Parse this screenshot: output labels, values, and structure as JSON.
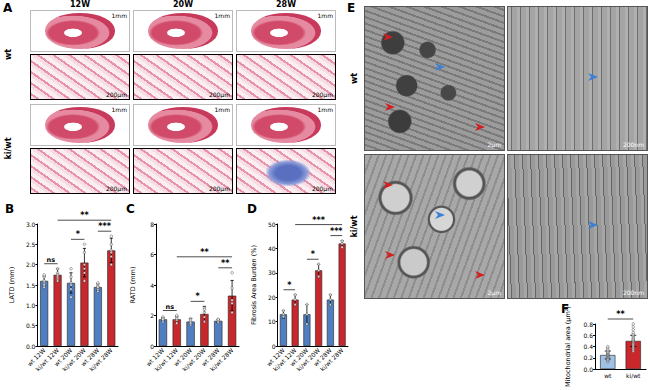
{
  "figure_panels": {
    "A": {
      "label": "A",
      "columns": [
        "12W",
        "20W",
        "28W"
      ],
      "rows": [
        "wt",
        "ki/wt"
      ],
      "overview_scales": [
        "1mm",
        "1mm",
        "1mm"
      ],
      "zoom_scales": [
        "200μm",
        "200μm",
        "200μm"
      ]
    },
    "E": {
      "label": "E",
      "rows": [
        "wt",
        "ki/wt"
      ],
      "scales": [
        "2μm",
        "200nm"
      ]
    }
  },
  "chart_data": [
    {
      "type": "bar",
      "title": "B",
      "y_label": "LATD (mm)",
      "categories": [
        "wt 12W",
        "ki/wt 12W",
        "wt 20W",
        "ki/wt 20W",
        "wt 28W",
        "ki/wt 28W"
      ],
      "values": [
        1.6,
        1.75,
        1.55,
        2.05,
        1.45,
        2.35
      ],
      "errors": [
        0.12,
        0.15,
        0.25,
        0.35,
        0.08,
        0.3
      ],
      "points": [
        [
          1.45,
          1.55,
          1.6,
          1.7,
          1.75,
          1.5
        ],
        [
          1.65,
          1.7,
          1.8,
          1.9,
          1.75,
          1.6
        ],
        [
          1.2,
          1.4,
          1.55,
          1.7,
          1.9,
          1.5
        ],
        [
          1.6,
          1.8,
          2.0,
          2.3,
          2.5,
          1.9
        ],
        [
          1.35,
          1.4,
          1.45,
          1.5,
          1.55,
          1.45
        ],
        [
          2.0,
          2.2,
          2.35,
          2.5,
          2.7,
          2.3
        ]
      ],
      "colors": [
        "#4f7fc0",
        "#c8282c",
        "#4f7fc0",
        "#c8282c",
        "#4f7fc0",
        "#c8282c"
      ],
      "ylim": [
        0,
        3
      ],
      "yticks": [
        {
          "value": 0,
          "label": "0.0"
        },
        {
          "value": 0.5,
          "label": "0.5"
        },
        {
          "value": 1,
          "label": "1.0"
        },
        {
          "value": 1.5,
          "label": "1.5"
        },
        {
          "value": 2,
          "label": "2.0"
        },
        {
          "value": 2.5,
          "label": "2.5"
        },
        {
          "value": 3,
          "label": "3.0"
        }
      ],
      "grid": false,
      "significance": [
        {
          "pair": [
            "wt 12W",
            "ki/wt 12W"
          ],
          "label": "ns"
        },
        {
          "pair": [
            "wt 20W",
            "ki/wt 20W"
          ],
          "label": "*"
        },
        {
          "pair": [
            "wt 28W",
            "ki/wt 28W"
          ],
          "label": "***"
        },
        {
          "pair": [
            "ki/wt 12W",
            "ki/wt 28W"
          ],
          "label": "**"
        }
      ]
    },
    {
      "type": "bar",
      "title": "C",
      "y_label": "RATD (mm)",
      "categories": [
        "wt 12W",
        "ki/wt 12W",
        "wt 20W",
        "ki/wt 20W",
        "wt 28W",
        "ki/wt 28W"
      ],
      "values": [
        1.75,
        1.75,
        1.6,
        2.1,
        1.65,
        3.3
      ],
      "errors": [
        0.12,
        0.2,
        0.2,
        0.5,
        0.1,
        1.0
      ],
      "points": [
        [
          1.6,
          1.7,
          1.8,
          1.9,
          1.75
        ],
        [
          1.5,
          1.7,
          1.9,
          1.8,
          2.0
        ],
        [
          1.4,
          1.5,
          1.6,
          1.8,
          1.7
        ],
        [
          1.6,
          1.9,
          2.2,
          2.5,
          2.4
        ],
        [
          1.55,
          1.6,
          1.7,
          1.75
        ],
        [
          2.2,
          2.8,
          3.0,
          3.8,
          4.8
        ]
      ],
      "colors": [
        "#4f7fc0",
        "#c8282c",
        "#4f7fc0",
        "#c8282c",
        "#4f7fc0",
        "#c8282c"
      ],
      "ylim": [
        0,
        8
      ],
      "yticks": [
        0,
        2,
        4,
        6,
        8
      ],
      "grid": false,
      "significance": [
        {
          "pair": [
            "wt 12W",
            "ki/wt 12W"
          ],
          "label": "ns"
        },
        {
          "pair": [
            "wt 20W",
            "ki/wt 20W"
          ],
          "label": "*"
        },
        {
          "pair": [
            "wt 28W",
            "ki/wt 28W"
          ],
          "label": "**"
        },
        {
          "pair": [
            "ki/wt 12W",
            "ki/wt 28W"
          ],
          "label": "**"
        }
      ]
    },
    {
      "type": "bar",
      "title": "D",
      "y_label": "Fibrosis Area Burden (%)",
      "categories": [
        "wt 12W",
        "ki/wt 12W",
        "wt 20W",
        "ki/wt 20W",
        "wt 28W",
        "ki/wt 28W"
      ],
      "values": [
        13,
        19,
        13,
        31,
        19,
        42
      ],
      "errors": [
        1.5,
        2,
        4,
        2.5,
        2,
        1.2
      ],
      "points": [
        [
          12,
          13,
          14.5
        ],
        [
          17,
          19,
          21
        ],
        [
          9,
          13,
          17
        ],
        [
          28.5,
          31,
          33.5
        ],
        [
          17,
          19,
          21
        ],
        [
          40.5,
          42,
          43
        ]
      ],
      "colors": [
        "#4f7fc0",
        "#c8282c",
        "#4f7fc0",
        "#c8282c",
        "#4f7fc0",
        "#c8282c"
      ],
      "ylim": [
        0,
        50
      ],
      "yticks": [
        0,
        10,
        20,
        30,
        40,
        50
      ],
      "grid": false,
      "significance": [
        {
          "pair": [
            "wt 12W",
            "ki/wt 12W"
          ],
          "label": "*"
        },
        {
          "pair": [
            "wt 20W",
            "ki/wt 20W"
          ],
          "label": "*"
        },
        {
          "pair": [
            "wt 28W",
            "ki/wt 28W"
          ],
          "label": "***"
        },
        {
          "pair": [
            "ki/wt 12W",
            "ki/wt 28W"
          ],
          "label": "***"
        }
      ]
    },
    {
      "type": "bar",
      "title": "F",
      "y_label": "Mitochondrial area (μm²)",
      "categories": [
        "wt",
        "ki/wt"
      ],
      "values": [
        0.25,
        0.5
      ],
      "errors": [
        0.07,
        0.1
      ],
      "points": [
        [
          0.13,
          0.15,
          0.17,
          0.18,
          0.2,
          0.21,
          0.22,
          0.23,
          0.24,
          0.25,
          0.25,
          0.26,
          0.27,
          0.28,
          0.29,
          0.3,
          0.31,
          0.33,
          0.35,
          0.38,
          0.4
        ],
        [
          0.32,
          0.35,
          0.38,
          0.4,
          0.42,
          0.44,
          0.46,
          0.48,
          0.49,
          0.5,
          0.51,
          0.52,
          0.54,
          0.56,
          0.58,
          0.6,
          0.62,
          0.65,
          0.7,
          0.75,
          0.8
        ]
      ],
      "colors": [
        "#9ec3e6",
        "#c8282c"
      ],
      "ylim": [
        0,
        0.8
      ],
      "yticks": [
        {
          "value": 0,
          "label": "0.0"
        },
        {
          "value": 0.2,
          "label": "0.2"
        },
        {
          "value": 0.4,
          "label": "0.4"
        },
        {
          "value": 0.6,
          "label": "0.6"
        },
        {
          "value": 0.8,
          "label": "0.8"
        }
      ],
      "grid": false,
      "significance": [
        {
          "pair": [
            "wt",
            "ki/wt"
          ],
          "label": "**"
        }
      ]
    }
  ]
}
